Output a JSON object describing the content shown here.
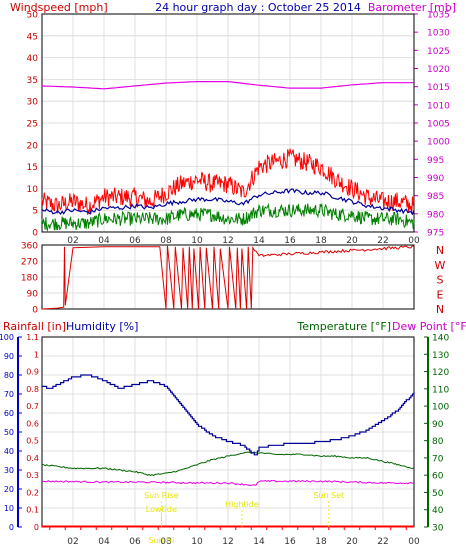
{
  "header": {
    "left_label": "Windspeed [mph]",
    "center_title": "24 hour graph day : October 25 2014",
    "right_label": "Barometer [mb]"
  },
  "colors": {
    "frame": "#000000",
    "grid": "#d8d8d8",
    "wind_gust": "#ff0000",
    "wind_avg": "#000099",
    "wind_low": "#008000",
    "barometer": "#e600e6",
    "direction": "#dd0000",
    "humidity": "#000099",
    "temperature": "#006400",
    "dew_point": "#e600e6",
    "rain": "#ff0000",
    "annotation": "#e6e600",
    "left_blue_axis": "#0000cc",
    "right_green_axis": "#006400",
    "label_red": "#cc0000",
    "label_blue": "#0000aa",
    "label_green": "#006400",
    "label_magenta": "#cc00cc"
  },
  "chart_data": [
    {
      "type": "line",
      "panel": "wind",
      "left_axis": {
        "label": "Windspeed [mph]",
        "min": 0,
        "max": 50,
        "ticks": [
          "0",
          "5",
          "10",
          "15",
          "20",
          "25",
          "30",
          "35",
          "40",
          "45",
          "50"
        ]
      },
      "right_axis": {
        "label": "Barometer [mb]",
        "min": 975,
        "max": 1035,
        "ticks": [
          "975",
          "980",
          "985",
          "990",
          "995",
          "1000",
          "1005",
          "1010",
          "1015",
          "1020",
          "1025",
          "1030",
          "1035"
        ]
      },
      "x_axis": {
        "min_hour": 0,
        "max_hour": 24,
        "tick_labels": [
          "02",
          "04",
          "06",
          "08",
          "10",
          "12",
          "14",
          "16",
          "18",
          "20",
          "22",
          "00"
        ],
        "tick_hours": [
          2,
          4,
          6,
          8,
          10,
          12,
          14,
          16,
          18,
          20,
          22,
          24
        ]
      },
      "grid": true,
      "series": [
        {
          "role": "gust",
          "x": [
            0,
            1,
            2,
            3,
            4,
            5,
            6,
            7,
            8,
            9,
            10,
            11,
            12,
            13,
            14,
            15,
            16,
            17,
            18,
            19,
            20,
            21,
            22,
            23,
            24
          ],
          "values": [
            7,
            6,
            7,
            6,
            8,
            8,
            8,
            7,
            9,
            11,
            12,
            11,
            11,
            9,
            15,
            16,
            17,
            16,
            15,
            12,
            10,
            8,
            7,
            7,
            6
          ]
        },
        {
          "role": "average",
          "x": [
            0,
            1,
            2,
            3,
            4,
            5,
            6,
            7,
            8,
            9,
            10,
            11,
            12,
            13,
            14,
            15,
            16,
            17,
            18,
            19,
            20,
            21,
            22,
            23,
            24
          ],
          "values": [
            5,
            4.5,
            5,
            4.5,
            5.5,
            5.5,
            6,
            5.5,
            6.5,
            7,
            7.5,
            7.5,
            7,
            6.5,
            8.5,
            9,
            9.5,
            9,
            9,
            8,
            7,
            6,
            5.5,
            5,
            4.5
          ]
        },
        {
          "role": "low",
          "x": [
            0,
            1,
            2,
            3,
            4,
            5,
            6,
            7,
            8,
            9,
            10,
            11,
            12,
            13,
            14,
            15,
            16,
            17,
            18,
            19,
            20,
            21,
            22,
            23,
            24
          ],
          "values": [
            2,
            2,
            2,
            2,
            3,
            3,
            3,
            3,
            3,
            4,
            4,
            4,
            3,
            3,
            5,
            5,
            5,
            5,
            5,
            4,
            4,
            3,
            3,
            3,
            2
          ]
        },
        {
          "role": "barometer",
          "x": [
            0,
            2,
            4,
            6,
            8,
            10,
            12,
            14,
            16,
            18,
            20,
            22,
            24
          ],
          "values": [
            1015.2,
            1014.9,
            1014.4,
            1015.2,
            1016.0,
            1016.4,
            1016.4,
            1015.4,
            1014.6,
            1014.6,
            1015.5,
            1016.1,
            1016.1
          ]
        }
      ]
    },
    {
      "type": "line",
      "panel": "direction",
      "left_axis": {
        "min": 0,
        "max": 360,
        "ticks": [
          "0",
          "90",
          "180",
          "270",
          "360"
        ]
      },
      "right_axis": {
        "tick_labels": [
          "N",
          "W",
          "S",
          "E",
          "N"
        ]
      },
      "x_axis": {
        "min_hour": 0,
        "max_hour": 24
      },
      "grid": true,
      "series": [
        {
          "role": "direction",
          "x": [
            0,
            1.0,
            1.4,
            1.45,
            1.5,
            2,
            4,
            6,
            7.6,
            8.0,
            8.1,
            8.5,
            8.6,
            9.0,
            9.1,
            9.4,
            9.5,
            9.7,
            9.8,
            10.1,
            10.2,
            10.5,
            10.6,
            11.0,
            11.1,
            11.4,
            11.5,
            12.0,
            12.1,
            12.5,
            12.6,
            12.8,
            12.9,
            13.2,
            13.3,
            13.5,
            13.6,
            14,
            16,
            18,
            20,
            22,
            24
          ],
          "values": [
            0,
            5,
            10,
            350,
            20,
            345,
            350,
            350,
            350,
            0,
            355,
            0,
            350,
            0,
            345,
            0,
            350,
            0,
            340,
            0,
            350,
            0,
            345,
            0,
            350,
            0,
            340,
            0,
            350,
            0,
            345,
            0,
            340,
            0,
            350,
            0,
            345,
            300,
            310,
            320,
            330,
            340,
            350
          ]
        }
      ]
    },
    {
      "type": "line",
      "panel": "humidity",
      "left_axis_outer": {
        "label": "Humidity [%]",
        "min": 0,
        "max": 100,
        "ticks": [
          "0",
          "10",
          "20",
          "30",
          "40",
          "50",
          "60",
          "70",
          "80",
          "90",
          "100"
        ]
      },
      "left_axis_inner": {
        "label": "Rainfall [in]",
        "min": 0,
        "max": 1.1,
        "ticks": [
          "0",
          "0.1",
          "0.2",
          "0.3",
          "0.4",
          "0.5",
          "0.6",
          "0.7",
          "0.8",
          "0.9",
          "1",
          "1.1"
        ]
      },
      "right_axis": {
        "label": "Temperature [°F]",
        "label2": "Dew Point [°F]",
        "min": 30,
        "max": 140,
        "ticks": [
          "30",
          "40",
          "50",
          "60",
          "70",
          "80",
          "90",
          "100",
          "110",
          "120",
          "130",
          "140"
        ]
      },
      "x_axis": {
        "min_hour": 0,
        "max_hour": 24,
        "tick_labels": [
          "02",
          "04",
          "06",
          "08",
          "10",
          "12",
          "14",
          "16",
          "18",
          "20",
          "22",
          "00"
        ],
        "tick_hours": [
          2,
          4,
          6,
          8,
          10,
          12,
          14,
          16,
          18,
          20,
          22,
          24
        ]
      },
      "annotations": [
        {
          "text": "Sun Rise",
          "hour": 7.7
        },
        {
          "text": "Sun Set",
          "hour": 18.5
        },
        {
          "text": "Lowtide",
          "hour": 7.7
        },
        {
          "text": "Hightide",
          "hour": 12.9
        },
        {
          "text": "Sun Hi",
          "hour": 7.7
        }
      ],
      "series": [
        {
          "role": "humidity",
          "x": [
            0,
            0.5,
            1,
            2,
            3,
            4,
            5,
            6,
            7,
            8,
            9,
            10,
            11,
            12,
            13,
            13.5,
            13.8,
            14,
            15,
            16,
            17,
            18,
            19,
            20,
            21,
            22,
            23,
            24
          ],
          "values": [
            74,
            73,
            75,
            79,
            80,
            77,
            73,
            75,
            77,
            74,
            64,
            54,
            48,
            45,
            43,
            39,
            38,
            42,
            43,
            44,
            44,
            45,
            46,
            48,
            51,
            56,
            62,
            71
          ]
        },
        {
          "role": "temperature",
          "x": [
            0,
            1,
            2,
            3,
            4,
            5,
            6,
            7,
            8,
            9,
            10,
            11,
            12,
            13,
            14,
            15,
            16,
            17,
            18,
            19,
            20,
            21,
            22,
            23,
            24
          ],
          "values": [
            66,
            65,
            64,
            64,
            64,
            63,
            62,
            60,
            61,
            63,
            66,
            69,
            71,
            73,
            73,
            72,
            72,
            72,
            71,
            71,
            70,
            70,
            68,
            66,
            64
          ]
        },
        {
          "role": "dew_point",
          "x": [
            0,
            2,
            4,
            6,
            8,
            10,
            12,
            13.8,
            14,
            16,
            18,
            20,
            22,
            24
          ],
          "values": [
            56.5,
            56.3,
            56,
            56,
            55.8,
            55.5,
            55.5,
            54,
            56.5,
            56.5,
            56.5,
            56,
            55.5,
            55.5
          ]
        },
        {
          "role": "rain",
          "x": [
            0,
            24
          ],
          "values": [
            0,
            0
          ]
        }
      ]
    }
  ]
}
